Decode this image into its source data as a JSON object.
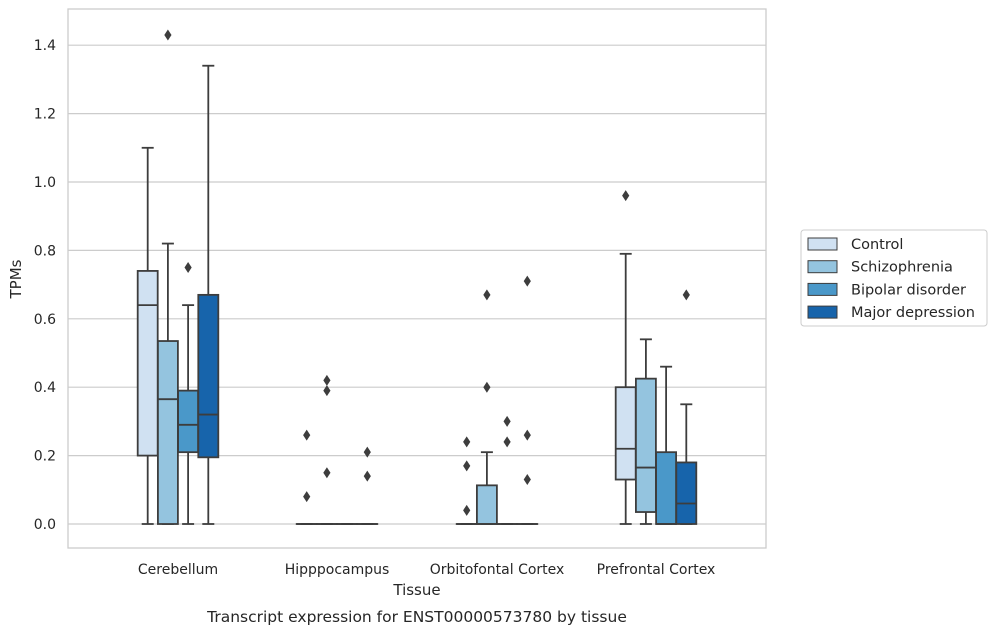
{
  "chart_data": {
    "type": "box",
    "xlabel": "Tissue",
    "ylabel": "TPMs",
    "caption": "Transcript expression for ENST00000573780 by tissue",
    "ylim": [
      -0.07,
      1.5
    ],
    "yticks": [
      0.0,
      0.2,
      0.4,
      0.6,
      0.8,
      1.0,
      1.2,
      1.4
    ],
    "ytick_labels": [
      "0.0",
      "0.2",
      "0.4",
      "0.6",
      "0.8",
      "1.0",
      "1.2",
      "1.4"
    ],
    "grid": true,
    "legend_position": "right",
    "categories": [
      "Cerebellum",
      "Hipppocampus",
      "Orbitofontal Cortex",
      "Prefrontal Cortex"
    ],
    "series": [
      {
        "name": "Control",
        "color": "#d0e1f2",
        "boxes": [
          {
            "whislo": 0.0,
            "q1": 0.2,
            "med": 0.64,
            "q3": 0.74,
            "whishi": 1.1,
            "fliers": []
          },
          {
            "whislo": 0.0,
            "q1": 0.0,
            "med": 0.0,
            "q3": 0.0,
            "whishi": 0.0,
            "fliers": [
              0.08,
              0.26
            ]
          },
          {
            "whislo": 0.0,
            "q1": 0.0,
            "med": 0.0,
            "q3": 0.0,
            "whishi": 0.0,
            "fliers": [
              0.04,
              0.17,
              0.24
            ]
          },
          {
            "whislo": 0.0,
            "q1": 0.13,
            "med": 0.22,
            "q3": 0.4,
            "whishi": 0.79,
            "fliers": [
              0.96
            ]
          }
        ]
      },
      {
        "name": "Schizophrenia",
        "color": "#94c4df",
        "boxes": [
          {
            "whislo": 0.0,
            "q1": 0.0,
            "med": 0.365,
            "q3": 0.535,
            "whishi": 0.82,
            "fliers": [
              1.43
            ]
          },
          {
            "whislo": 0.0,
            "q1": 0.0,
            "med": 0.0,
            "q3": 0.0,
            "whishi": 0.0,
            "fliers": [
              0.15,
              0.39,
              0.42
            ]
          },
          {
            "whislo": 0.0,
            "q1": 0.0,
            "med": 0.0,
            "q3": 0.113,
            "whishi": 0.21,
            "fliers": [
              0.4,
              0.67
            ]
          },
          {
            "whislo": 0.0,
            "q1": 0.035,
            "med": 0.165,
            "q3": 0.425,
            "whishi": 0.54,
            "fliers": []
          }
        ]
      },
      {
        "name": "Bipolar disorder",
        "color": "#4a98c9",
        "boxes": [
          {
            "whislo": 0.0,
            "q1": 0.21,
            "med": 0.29,
            "q3": 0.39,
            "whishi": 0.64,
            "fliers": [
              0.75
            ]
          },
          {
            "whislo": 0.0,
            "q1": 0.0,
            "med": 0.0,
            "q3": 0.0,
            "whishi": 0.0,
            "fliers": []
          },
          {
            "whislo": 0.0,
            "q1": 0.0,
            "med": 0.0,
            "q3": 0.0,
            "whishi": 0.0,
            "fliers": [
              0.24,
              0.3
            ]
          },
          {
            "whislo": 0.0,
            "q1": 0.0,
            "med": 0.0,
            "q3": 0.21,
            "whishi": 0.46,
            "fliers": []
          }
        ]
      },
      {
        "name": "Major depression",
        "color": "#1764ab",
        "boxes": [
          {
            "whislo": 0.0,
            "q1": 0.195,
            "med": 0.32,
            "q3": 0.67,
            "whishi": 1.34,
            "fliers": []
          },
          {
            "whislo": 0.0,
            "q1": 0.0,
            "med": 0.0,
            "q3": 0.0,
            "whishi": 0.0,
            "fliers": [
              0.14,
              0.21
            ]
          },
          {
            "whislo": 0.0,
            "q1": 0.0,
            "med": 0.0,
            "q3": 0.0,
            "whishi": 0.0,
            "fliers": [
              0.13,
              0.26,
              0.71
            ]
          },
          {
            "whislo": 0.0,
            "q1": 0.0,
            "med": 0.06,
            "q3": 0.18,
            "whishi": 0.35,
            "fliers": [
              0.67
            ]
          }
        ]
      }
    ]
  }
}
